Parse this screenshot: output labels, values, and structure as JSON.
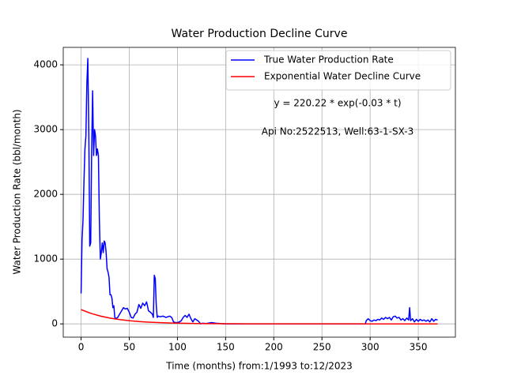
{
  "chart_data": {
    "type": "line",
    "title": "Water Production Decline Curve",
    "xlabel": "Time (months) from:1/1993 to:12/2023",
    "ylabel": "Water Production Rate (bbl/month)",
    "annotations": [
      "y = 220.22 * exp(-0.03 * t)",
      "Api No:2522513, Well:63-1-SX-3"
    ],
    "xlim": [
      -18.5,
      388.5
    ],
    "ylim": [
      -205,
      4270
    ],
    "xticks": [
      0,
      50,
      100,
      150,
      200,
      250,
      300,
      350
    ],
    "yticks": [
      0,
      1000,
      2000,
      3000,
      4000
    ],
    "grid": true,
    "legend": "upper right",
    "series": [
      {
        "name": "True Water Production Rate",
        "color": "#0000ff",
        "x": [
          0,
          1,
          2,
          3,
          4,
          5,
          6,
          7,
          8,
          9,
          10,
          11,
          12,
          13,
          14,
          15,
          16,
          17,
          18,
          19,
          20,
          21,
          22,
          23,
          24,
          25,
          26,
          27,
          28,
          29,
          30,
          31,
          32,
          33,
          34,
          35,
          36,
          38,
          40,
          42,
          44,
          46,
          48,
          50,
          52,
          54,
          56,
          58,
          60,
          62,
          64,
          66,
          68,
          70,
          72,
          74,
          75,
          76,
          77,
          78,
          79,
          80,
          82,
          85,
          88,
          90,
          92,
          94,
          96,
          98,
          100,
          102,
          104,
          106,
          108,
          110,
          112,
          114,
          116,
          118,
          120,
          122,
          124,
          126,
          130,
          135,
          140,
          150,
          200,
          250,
          295,
          296,
          298,
          300,
          302,
          304,
          306,
          308,
          310,
          312,
          314,
          316,
          318,
          320,
          322,
          324,
          326,
          328,
          330,
          332,
          334,
          336,
          338,
          340,
          341,
          342,
          344,
          346,
          348,
          350,
          352,
          354,
          356,
          358,
          360,
          362,
          364,
          366,
          368,
          370
        ],
        "values": [
          470,
          1300,
          1600,
          2200,
          2700,
          2900,
          3700,
          4100,
          3000,
          1200,
          1250,
          2700,
          3600,
          2600,
          3000,
          2900,
          2600,
          2700,
          2600,
          1600,
          1000,
          1100,
          1250,
          1100,
          1280,
          1250,
          1100,
          850,
          800,
          720,
          450,
          450,
          400,
          250,
          280,
          100,
          80,
          100,
          150,
          200,
          250,
          230,
          240,
          180,
          100,
          90,
          150,
          180,
          300,
          240,
          320,
          280,
          340,
          200,
          180,
          150,
          100,
          750,
          700,
          300,
          100,
          120,
          110,
          120,
          100,
          110,
          120,
          100,
          30,
          20,
          20,
          30,
          50,
          100,
          130,
          100,
          150,
          80,
          30,
          80,
          60,
          40,
          0,
          10,
          5,
          20,
          10,
          0,
          0,
          0,
          0,
          50,
          80,
          50,
          40,
          60,
          50,
          70,
          60,
          90,
          70,
          100,
          80,
          100,
          60,
          110,
          120,
          90,
          100,
          60,
          80,
          50,
          90,
          60,
          250,
          50,
          80,
          30,
          70,
          40,
          70,
          50,
          60,
          40,
          60,
          30,
          80,
          40,
          70,
          60
        ]
      },
      {
        "name": "Exponential Water Decline Curve",
        "color": "#ff0000",
        "x": [
          0,
          10,
          20,
          30,
          40,
          50,
          60,
          70,
          80,
          90,
          100,
          110,
          120,
          130,
          140,
          150,
          160,
          170,
          180,
          190,
          200,
          210,
          220,
          230,
          240,
          250,
          260,
          270,
          280,
          290,
          300,
          310,
          320,
          330,
          340,
          350,
          360,
          370
        ],
        "values": [
          220.22,
          163.14,
          120.86,
          89.53,
          66.33,
          49.14,
          36.4,
          26.97,
          19.98,
          14.8,
          10.96,
          8.12,
          6.02,
          4.46,
          3.3,
          2.45,
          1.81,
          1.34,
          0.99,
          0.74,
          0.55,
          0.4,
          0.3,
          0.22,
          0.16,
          0.12,
          0.09,
          0.07,
          0.05,
          0.04,
          0.03,
          0.02,
          0.015,
          0.011,
          0.008,
          0.006,
          0.005,
          0.003
        ]
      }
    ]
  }
}
